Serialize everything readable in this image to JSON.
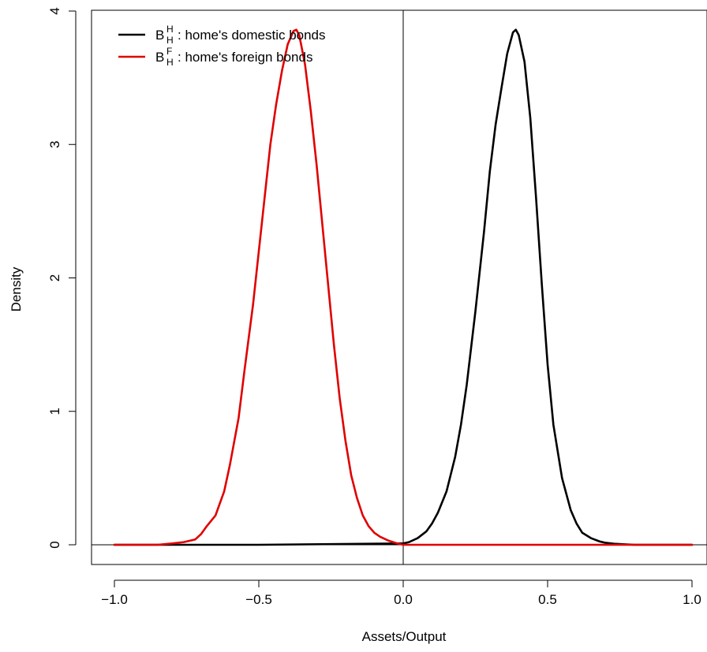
{
  "chart_data": {
    "type": "line",
    "title": "",
    "xlabel": "Assets/Output",
    "ylabel": "Density",
    "xlim": [
      -1.0,
      1.0
    ],
    "ylim": [
      0,
      4
    ],
    "x_ticks": [
      -1.0,
      -0.5,
      0.0,
      0.5,
      1.0
    ],
    "x_tick_labels": [
      "−1.0",
      "−0.5",
      "0.0",
      "0.5",
      "1.0"
    ],
    "y_ticks": [
      0,
      1,
      2,
      3,
      4
    ],
    "y_tick_labels": [
      "0",
      "1",
      "2",
      "3",
      "4"
    ],
    "reference_lines": {
      "horizontal_y": 0,
      "vertical_x": 0
    },
    "grid": false,
    "legend_position": "top-left",
    "series": [
      {
        "name": "home's domestic bonds",
        "symbol": "B",
        "superscript": "H",
        "subscript": "H",
        "color": "#000000",
        "x": [
          -1.0,
          -0.5,
          0.0,
          0.02,
          0.05,
          0.08,
          0.1,
          0.12,
          0.15,
          0.18,
          0.2,
          0.22,
          0.25,
          0.28,
          0.3,
          0.32,
          0.34,
          0.36,
          0.38,
          0.39,
          0.4,
          0.42,
          0.44,
          0.46,
          0.48,
          0.5,
          0.52,
          0.55,
          0.58,
          0.6,
          0.62,
          0.65,
          0.68,
          0.7,
          0.73,
          0.76,
          0.8,
          0.85,
          0.9,
          1.0
        ],
        "y": [
          0.0,
          0.0,
          0.01,
          0.02,
          0.05,
          0.1,
          0.16,
          0.24,
          0.4,
          0.66,
          0.9,
          1.2,
          1.75,
          2.35,
          2.8,
          3.15,
          3.42,
          3.68,
          3.84,
          3.86,
          3.82,
          3.62,
          3.2,
          2.6,
          1.95,
          1.35,
          0.9,
          0.5,
          0.26,
          0.16,
          0.09,
          0.05,
          0.025,
          0.015,
          0.008,
          0.004,
          0.0,
          0.0,
          0.0,
          0.0
        ]
      },
      {
        "name": "home's foreign bonds",
        "symbol": "B",
        "superscript": "F",
        "subscript": "H",
        "color": "#e00000",
        "x": [
          -1.0,
          -0.9,
          -0.85,
          -0.8,
          -0.76,
          -0.72,
          -0.7,
          -0.68,
          -0.65,
          -0.62,
          -0.6,
          -0.57,
          -0.55,
          -0.52,
          -0.5,
          -0.48,
          -0.46,
          -0.44,
          -0.42,
          -0.4,
          -0.38,
          -0.37,
          -0.36,
          -0.34,
          -0.32,
          -0.3,
          -0.28,
          -0.26,
          -0.24,
          -0.22,
          -0.2,
          -0.18,
          -0.16,
          -0.14,
          -0.12,
          -0.1,
          -0.08,
          -0.05,
          -0.02,
          0.0,
          0.1,
          0.5,
          1.0
        ],
        "y": [
          0.0,
          0.0,
          0.0,
          0.01,
          0.02,
          0.04,
          0.08,
          0.14,
          0.22,
          0.4,
          0.6,
          0.95,
          1.3,
          1.8,
          2.2,
          2.6,
          3.0,
          3.3,
          3.55,
          3.75,
          3.85,
          3.86,
          3.82,
          3.6,
          3.25,
          2.85,
          2.4,
          1.95,
          1.5,
          1.1,
          0.78,
          0.52,
          0.35,
          0.22,
          0.14,
          0.09,
          0.06,
          0.03,
          0.01,
          0.0,
          0.0,
          0.0,
          0.0
        ]
      }
    ]
  }
}
